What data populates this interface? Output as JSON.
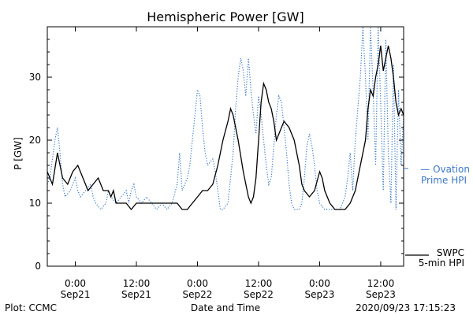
{
  "chart_data": {
    "type": "line",
    "title": "Hemispheric Power [GW]",
    "xlabel": "Date and Time",
    "ylabel": "P [GW]",
    "ylim": [
      0,
      38
    ],
    "grid": false,
    "legend_placement": "right",
    "yticks": [
      0,
      10,
      20,
      30
    ],
    "x_start": "2020-09-20T18:30",
    "x_end": "2020-09-23T16:30",
    "xticks": [
      {
        "time": "2020-09-21T00:00",
        "line1": "0:00",
        "line2": "Sep21"
      },
      {
        "time": "2020-09-21T12:00",
        "line1": "12:00",
        "line2": "Sep21"
      },
      {
        "time": "2020-09-22T00:00",
        "line1": "0:00",
        "line2": "Sep22"
      },
      {
        "time": "2020-09-22T12:00",
        "line1": "12:00",
        "line2": "Sep22"
      },
      {
        "time": "2020-09-23T00:00",
        "line1": "0:00",
        "line2": "Sep23"
      },
      {
        "time": "2020-09-23T12:00",
        "line1": "12:00",
        "line2": "Sep23"
      }
    ],
    "series": [
      {
        "name": "SWPC 5-min HPI",
        "legend_lines": [
          "SWPC",
          "5-min HPI"
        ],
        "color": "#000000",
        "style": "solid",
        "points": [
          [
            "2020-09-20T18:30",
            15
          ],
          [
            "2020-09-20T19:30",
            13
          ],
          [
            "2020-09-20T20:30",
            18
          ],
          [
            "2020-09-20T21:30",
            14
          ],
          [
            "2020-09-20T22:30",
            13
          ],
          [
            "2020-09-20T23:30",
            15
          ],
          [
            "2020-09-21T00:30",
            16
          ],
          [
            "2020-09-21T01:30",
            14
          ],
          [
            "2020-09-21T02:30",
            12
          ],
          [
            "2020-09-21T03:30",
            13
          ],
          [
            "2020-09-21T04:30",
            14
          ],
          [
            "2020-09-21T05:30",
            12
          ],
          [
            "2020-09-21T06:30",
            12
          ],
          [
            "2020-09-21T07:00",
            11
          ],
          [
            "2020-09-21T07:30",
            12
          ],
          [
            "2020-09-21T08:00",
            10
          ],
          [
            "2020-09-21T09:00",
            10
          ],
          [
            "2020-09-21T10:00",
            10
          ],
          [
            "2020-09-21T11:00",
            9
          ],
          [
            "2020-09-21T12:00",
            10
          ],
          [
            "2020-09-21T14:00",
            10
          ],
          [
            "2020-09-21T16:00",
            10
          ],
          [
            "2020-09-21T18:00",
            10
          ],
          [
            "2020-09-21T20:00",
            10
          ],
          [
            "2020-09-21T21:00",
            9
          ],
          [
            "2020-09-21T22:00",
            9
          ],
          [
            "2020-09-21T23:00",
            10
          ],
          [
            "2020-09-22T00:00",
            11
          ],
          [
            "2020-09-22T01:00",
            12
          ],
          [
            "2020-09-22T02:00",
            12
          ],
          [
            "2020-09-22T03:00",
            13
          ],
          [
            "2020-09-22T04:00",
            16
          ],
          [
            "2020-09-22T05:00",
            20
          ],
          [
            "2020-09-22T06:00",
            23
          ],
          [
            "2020-09-22T06:30",
            25
          ],
          [
            "2020-09-22T07:00",
            24
          ],
          [
            "2020-09-22T08:00",
            20
          ],
          [
            "2020-09-22T09:00",
            15
          ],
          [
            "2020-09-22T10:00",
            11
          ],
          [
            "2020-09-22T10:30",
            10
          ],
          [
            "2020-09-22T11:00",
            11
          ],
          [
            "2020-09-22T11:30",
            14
          ],
          [
            "2020-09-22T12:00",
            20
          ],
          [
            "2020-09-22T12:30",
            26
          ],
          [
            "2020-09-22T13:00",
            29
          ],
          [
            "2020-09-22T13:30",
            28
          ],
          [
            "2020-09-22T14:00",
            26
          ],
          [
            "2020-09-22T14:30",
            25
          ],
          [
            "2020-09-22T15:00",
            23
          ],
          [
            "2020-09-22T15:30",
            20
          ],
          [
            "2020-09-22T16:00",
            21
          ],
          [
            "2020-09-22T16:30",
            22
          ],
          [
            "2020-09-22T17:00",
            23
          ],
          [
            "2020-09-22T18:00",
            22
          ],
          [
            "2020-09-22T19:00",
            20
          ],
          [
            "2020-09-22T20:00",
            16
          ],
          [
            "2020-09-22T20:30",
            13
          ],
          [
            "2020-09-22T21:00",
            12
          ],
          [
            "2020-09-22T22:00",
            11
          ],
          [
            "2020-09-22T23:00",
            12
          ],
          [
            "2020-09-23T00:00",
            15
          ],
          [
            "2020-09-23T00:30",
            14
          ],
          [
            "2020-09-23T01:00",
            12
          ],
          [
            "2020-09-23T02:00",
            10
          ],
          [
            "2020-09-23T03:00",
            9
          ],
          [
            "2020-09-23T04:00",
            9
          ],
          [
            "2020-09-23T05:00",
            9
          ],
          [
            "2020-09-23T06:00",
            10
          ],
          [
            "2020-09-23T07:00",
            12
          ],
          [
            "2020-09-23T08:00",
            16
          ],
          [
            "2020-09-23T09:00",
            20
          ],
          [
            "2020-09-23T09:30",
            25
          ],
          [
            "2020-09-23T10:00",
            28
          ],
          [
            "2020-09-23T10:30",
            27
          ],
          [
            "2020-09-23T11:00",
            30
          ],
          [
            "2020-09-23T11:30",
            32
          ],
          [
            "2020-09-23T12:00",
            35
          ],
          [
            "2020-09-23T12:30",
            31
          ],
          [
            "2020-09-23T13:00",
            33
          ],
          [
            "2020-09-23T13:30",
            35
          ],
          [
            "2020-09-23T14:00",
            33
          ],
          [
            "2020-09-23T14:30",
            30
          ],
          [
            "2020-09-23T15:00",
            26
          ],
          [
            "2020-09-23T15:30",
            24
          ],
          [
            "2020-09-23T16:00",
            25
          ],
          [
            "2020-09-23T16:30",
            24
          ]
        ]
      },
      {
        "name": "Ovation Prime HPI",
        "legend_lines": [
          "— Ovation",
          "Prime HPI"
        ],
        "color": "#3a78c8",
        "style": "dotted",
        "points": [
          [
            "2020-09-20T18:30",
            13
          ],
          [
            "2020-09-20T19:00",
            14
          ],
          [
            "2020-09-20T19:30",
            17
          ],
          [
            "2020-09-20T20:00",
            20
          ],
          [
            "2020-09-20T20:30",
            22
          ],
          [
            "2020-09-20T21:00",
            18
          ],
          [
            "2020-09-20T21:30",
            13
          ],
          [
            "2020-09-20T22:00",
            11
          ],
          [
            "2020-09-20T23:00",
            12
          ],
          [
            "2020-09-21T00:00",
            14
          ],
          [
            "2020-09-21T00:30",
            12
          ],
          [
            "2020-09-21T01:00",
            11
          ],
          [
            "2020-09-21T02:00",
            12
          ],
          [
            "2020-09-21T03:00",
            13
          ],
          [
            "2020-09-21T03:30",
            11
          ],
          [
            "2020-09-21T04:00",
            10
          ],
          [
            "2020-09-21T05:00",
            9
          ],
          [
            "2020-09-21T06:00",
            10
          ],
          [
            "2020-09-21T06:30",
            12
          ],
          [
            "2020-09-21T07:00",
            11
          ],
          [
            "2020-09-21T08:00",
            10
          ],
          [
            "2020-09-21T09:00",
            11
          ],
          [
            "2020-09-21T10:00",
            12
          ],
          [
            "2020-09-21T10:30",
            10
          ],
          [
            "2020-09-21T11:00",
            12
          ],
          [
            "2020-09-21T11:30",
            13
          ],
          [
            "2020-09-21T12:00",
            11
          ],
          [
            "2020-09-21T13:00",
            10
          ],
          [
            "2020-09-21T14:00",
            11
          ],
          [
            "2020-09-21T15:00",
            10
          ],
          [
            "2020-09-21T16:00",
            9
          ],
          [
            "2020-09-21T17:00",
            10
          ],
          [
            "2020-09-21T18:00",
            9
          ],
          [
            "2020-09-21T19:00",
            10
          ],
          [
            "2020-09-21T20:00",
            13
          ],
          [
            "2020-09-21T20:30",
            18
          ],
          [
            "2020-09-21T21:00",
            12
          ],
          [
            "2020-09-21T22:00",
            14
          ],
          [
            "2020-09-21T22:30",
            16
          ],
          [
            "2020-09-21T23:00",
            20
          ],
          [
            "2020-09-21T23:30",
            24
          ],
          [
            "2020-09-22T00:00",
            28
          ],
          [
            "2020-09-22T00:30",
            27
          ],
          [
            "2020-09-22T01:00",
            22
          ],
          [
            "2020-09-22T01:30",
            18
          ],
          [
            "2020-09-22T02:00",
            16
          ],
          [
            "2020-09-22T03:00",
            17
          ],
          [
            "2020-09-22T03:30",
            15
          ],
          [
            "2020-09-22T04:00",
            12
          ],
          [
            "2020-09-22T04:30",
            9
          ],
          [
            "2020-09-22T05:00",
            9
          ],
          [
            "2020-09-22T06:00",
            10
          ],
          [
            "2020-09-22T06:30",
            14
          ],
          [
            "2020-09-22T07:00",
            18
          ],
          [
            "2020-09-22T07:30",
            25
          ],
          [
            "2020-09-22T08:00",
            30
          ],
          [
            "2020-09-22T08:30",
            33
          ],
          [
            "2020-09-22T09:00",
            31
          ],
          [
            "2020-09-22T09:30",
            27
          ],
          [
            "2020-09-22T10:00",
            33
          ],
          [
            "2020-09-22T10:30",
            28
          ],
          [
            "2020-09-22T11:00",
            24
          ],
          [
            "2020-09-22T11:30",
            21
          ],
          [
            "2020-09-22T12:00",
            27
          ],
          [
            "2020-09-22T12:30",
            24
          ],
          [
            "2020-09-22T13:00",
            20
          ],
          [
            "2020-09-22T13:30",
            16
          ],
          [
            "2020-09-22T14:00",
            13
          ],
          [
            "2020-09-22T14:30",
            14
          ],
          [
            "2020-09-22T15:00",
            19
          ],
          [
            "2020-09-22T15:30",
            24
          ],
          [
            "2020-09-22T16:00",
            27
          ],
          [
            "2020-09-22T16:30",
            26
          ],
          [
            "2020-09-22T17:00",
            22
          ],
          [
            "2020-09-22T17:30",
            18
          ],
          [
            "2020-09-22T18:00",
            13
          ],
          [
            "2020-09-22T18:30",
            10
          ],
          [
            "2020-09-22T19:00",
            9
          ],
          [
            "2020-09-22T20:00",
            9
          ],
          [
            "2020-09-22T20:30",
            10
          ],
          [
            "2020-09-22T21:00",
            14
          ],
          [
            "2020-09-22T21:30",
            19
          ],
          [
            "2020-09-22T22:00",
            21
          ],
          [
            "2020-09-22T22:30",
            19
          ],
          [
            "2020-09-22T23:00",
            16
          ],
          [
            "2020-09-22T23:30",
            12
          ],
          [
            "2020-09-23T00:00",
            10
          ],
          [
            "2020-09-23T01:00",
            9
          ],
          [
            "2020-09-23T02:00",
            9
          ],
          [
            "2020-09-23T03:00",
            9
          ],
          [
            "2020-09-23T04:00",
            9
          ],
          [
            "2020-09-23T05:00",
            11
          ],
          [
            "2020-09-23T05:30",
            14
          ],
          [
            "2020-09-23T06:00",
            18
          ],
          [
            "2020-09-23T06:30",
            12
          ],
          [
            "2020-09-23T07:00",
            20
          ],
          [
            "2020-09-23T07:30",
            25
          ],
          [
            "2020-09-23T08:00",
            30
          ],
          [
            "2020-09-23T08:30",
            38
          ],
          [
            "2020-09-23T09:00",
            30
          ],
          [
            "2020-09-23T09:30",
            20
          ],
          [
            "2020-09-23T10:00",
            38
          ],
          [
            "2020-09-23T10:30",
            28
          ],
          [
            "2020-09-23T11:00",
            16
          ],
          [
            "2020-09-23T11:30",
            38
          ],
          [
            "2020-09-23T12:00",
            26
          ],
          [
            "2020-09-23T12:30",
            12
          ],
          [
            "2020-09-23T13:00",
            36
          ],
          [
            "2020-09-23T13:30",
            18
          ],
          [
            "2020-09-23T14:00",
            10
          ],
          [
            "2020-09-23T14:30",
            32
          ],
          [
            "2020-09-23T15:00",
            9
          ],
          [
            "2020-09-23T15:30",
            28
          ],
          [
            "2020-09-23T16:00",
            16
          ],
          [
            "2020-09-23T16:30",
            24
          ]
        ]
      }
    ]
  },
  "footer": {
    "plot_credit": "Plot: CCMC",
    "timestamp": "2020/09/23 17:15:23"
  }
}
